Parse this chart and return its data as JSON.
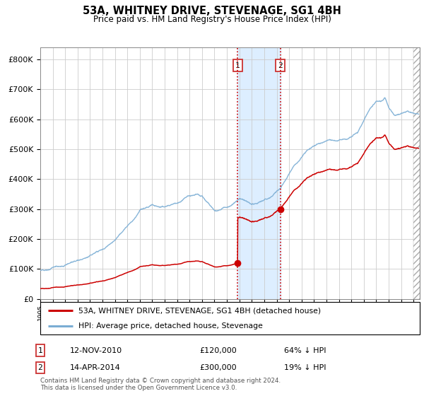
{
  "title": "53A, WHITNEY DRIVE, STEVENAGE, SG1 4BH",
  "subtitle": "Price paid vs. HM Land Registry's House Price Index (HPI)",
  "sale1_date_num": 2010.87,
  "sale1_price": 120000,
  "sale2_date_num": 2014.29,
  "sale2_price": 300000,
  "sale1_date_str": "12-NOV-2010",
  "sale1_pct": "64% ↓ HPI",
  "sale2_date_str": "14-APR-2014",
  "sale2_pct": "19% ↓ HPI",
  "legend_red": "53A, WHITNEY DRIVE, STEVENAGE, SG1 4BH (detached house)",
  "legend_blue": "HPI: Average price, detached house, Stevenage",
  "footer": "Contains HM Land Registry data © Crown copyright and database right 2024.\nThis data is licensed under the Open Government Licence v3.0.",
  "ylim": [
    0,
    840000
  ],
  "xlim_start": 1995.0,
  "xlim_end": 2025.5,
  "grid_color": "#cccccc",
  "red_color": "#cc0000",
  "blue_color": "#7aadd4",
  "shade_color": "#ddeeff",
  "box_edge_color": "#cc3333"
}
